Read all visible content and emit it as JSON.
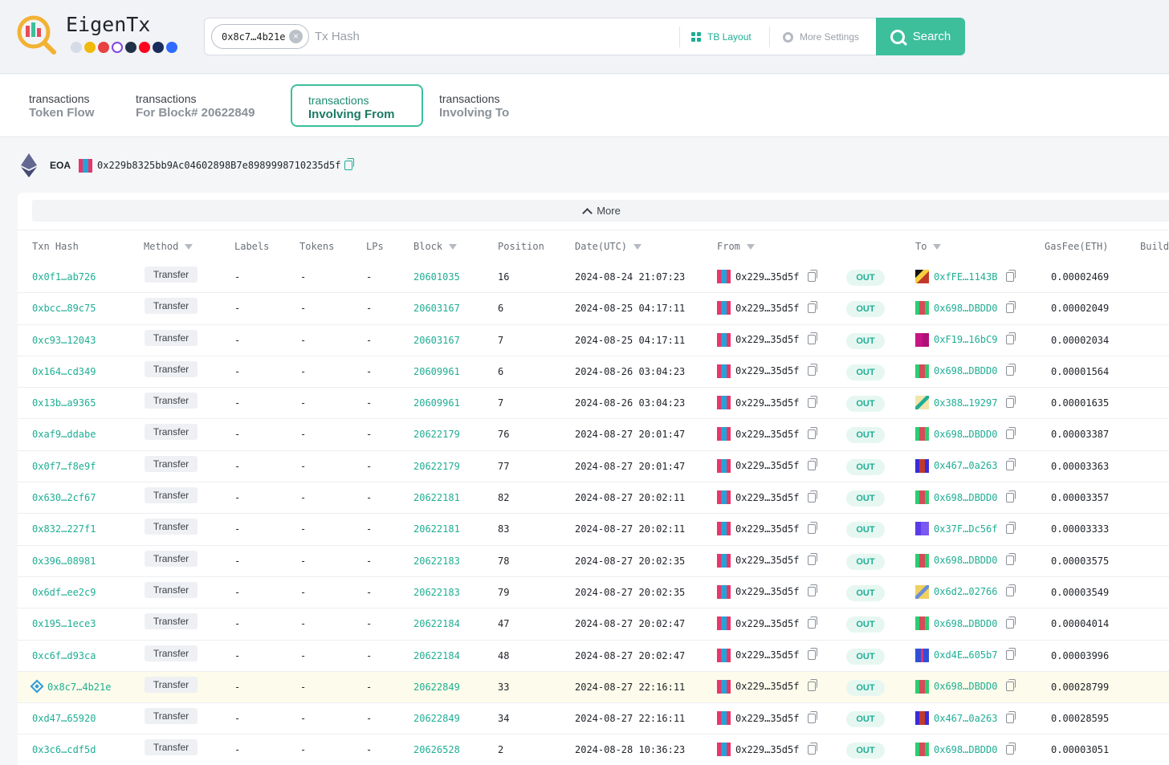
{
  "app": {
    "brand": "EigenTx",
    "chain_icons": [
      "ethereum-icon",
      "bnb-icon",
      "avalanche-icon",
      "polygon-icon",
      "arbitrum-icon",
      "optimism-icon",
      "fantom-icon",
      "base-icon"
    ]
  },
  "search": {
    "chip_label": "0x8c7…4b21e",
    "placeholder": "Tx Hash",
    "tb_layout_label": "TB Layout",
    "more_settings_label": "More Settings",
    "search_button_label": "Search"
  },
  "tabs": [
    {
      "line1": "transactions",
      "line2": "Token Flow",
      "active": false
    },
    {
      "line1": "transactions",
      "line2": "For Block# 20622849",
      "active": false
    },
    {
      "line1": "transactions",
      "line2": "Involving From",
      "active": true
    },
    {
      "line1": "transactions",
      "line2": "Involving To",
      "active": false
    }
  ],
  "eoa": {
    "label": "EOA",
    "address": "0x229b8325bb9Ac04602898B7e8989998710235d5f"
  },
  "table": {
    "more_label": "More",
    "columns": [
      "Txn Hash",
      "Method",
      "Labels",
      "Tokens",
      "LPs",
      "Block",
      "Position",
      "Date(UTC)",
      "From",
      "To",
      "GasFee(ETH)",
      "Build"
    ],
    "rows": [
      {
        "hash": "0x0f1…ab726",
        "method": "Transfer",
        "labels": "-",
        "tokens": "-",
        "lps": "-",
        "block": "20601035",
        "position": "16",
        "date": "2024-08-24 21:07:23",
        "from": "0x229…35d5f",
        "dir": "OUT",
        "to": "0xfFE…1143B",
        "gas": "0.00002469"
      },
      {
        "hash": "0xbcc…89c75",
        "method": "Transfer",
        "labels": "-",
        "tokens": "-",
        "lps": "-",
        "block": "20603167",
        "position": "6",
        "date": "2024-08-25 04:17:11",
        "from": "0x229…35d5f",
        "dir": "OUT",
        "to": "0x698…DBDD0",
        "gas": "0.00002049"
      },
      {
        "hash": "0xc93…12043",
        "method": "Transfer",
        "labels": "-",
        "tokens": "-",
        "lps": "-",
        "block": "20603167",
        "position": "7",
        "date": "2024-08-25 04:17:11",
        "from": "0x229…35d5f",
        "dir": "OUT",
        "to": "0xF19…16bC9",
        "gas": "0.00002034"
      },
      {
        "hash": "0x164…cd349",
        "method": "Transfer",
        "labels": "-",
        "tokens": "-",
        "lps": "-",
        "block": "20609961",
        "position": "6",
        "date": "2024-08-26 03:04:23",
        "from": "0x229…35d5f",
        "dir": "OUT",
        "to": "0x698…DBDD0",
        "gas": "0.00001564"
      },
      {
        "hash": "0x13b…a9365",
        "method": "Transfer",
        "labels": "-",
        "tokens": "-",
        "lps": "-",
        "block": "20609961",
        "position": "7",
        "date": "2024-08-26 03:04:23",
        "from": "0x229…35d5f",
        "dir": "OUT",
        "to": "0x388…19297",
        "gas": "0.00001635"
      },
      {
        "hash": "0xaf9…ddabe",
        "method": "Transfer",
        "labels": "-",
        "tokens": "-",
        "lps": "-",
        "block": "20622179",
        "position": "76",
        "date": "2024-08-27 20:01:47",
        "from": "0x229…35d5f",
        "dir": "OUT",
        "to": "0x698…DBDD0",
        "gas": "0.00003387"
      },
      {
        "hash": "0x0f7…f8e9f",
        "method": "Transfer",
        "labels": "-",
        "tokens": "-",
        "lps": "-",
        "block": "20622179",
        "position": "77",
        "date": "2024-08-27 20:01:47",
        "from": "0x229…35d5f",
        "dir": "OUT",
        "to": "0x467…0a263",
        "gas": "0.00003363"
      },
      {
        "hash": "0x630…2cf67",
        "method": "Transfer",
        "labels": "-",
        "tokens": "-",
        "lps": "-",
        "block": "20622181",
        "position": "82",
        "date": "2024-08-27 20:02:11",
        "from": "0x229…35d5f",
        "dir": "OUT",
        "to": "0x698…DBDD0",
        "gas": "0.00003357"
      },
      {
        "hash": "0x832…227f1",
        "method": "Transfer",
        "labels": "-",
        "tokens": "-",
        "lps": "-",
        "block": "20622181",
        "position": "83",
        "date": "2024-08-27 20:02:11",
        "from": "0x229…35d5f",
        "dir": "OUT",
        "to": "0x37F…Dc56f",
        "gas": "0.00003333"
      },
      {
        "hash": "0x396…08981",
        "method": "Transfer",
        "labels": "-",
        "tokens": "-",
        "lps": "-",
        "block": "20622183",
        "position": "78",
        "date": "2024-08-27 20:02:35",
        "from": "0x229…35d5f",
        "dir": "OUT",
        "to": "0x698…DBDD0",
        "gas": "0.00003575"
      },
      {
        "hash": "0x6df…ee2c9",
        "method": "Transfer",
        "labels": "-",
        "tokens": "-",
        "lps": "-",
        "block": "20622183",
        "position": "79",
        "date": "2024-08-27 20:02:35",
        "from": "0x229…35d5f",
        "dir": "OUT",
        "to": "0x6d2…02766",
        "gas": "0.00003549"
      },
      {
        "hash": "0x195…1ece3",
        "method": "Transfer",
        "labels": "-",
        "tokens": "-",
        "lps": "-",
        "block": "20622184",
        "position": "47",
        "date": "2024-08-27 20:02:47",
        "from": "0x229…35d5f",
        "dir": "OUT",
        "to": "0x698…DBDD0",
        "gas": "0.00004014"
      },
      {
        "hash": "0xc6f…d93ca",
        "method": "Transfer",
        "labels": "-",
        "tokens": "-",
        "lps": "-",
        "block": "20622184",
        "position": "48",
        "date": "2024-08-27 20:02:47",
        "from": "0x229…35d5f",
        "dir": "OUT",
        "to": "0xd4E…605b7",
        "gas": "0.00003996"
      },
      {
        "hash": "0x8c7…4b21e",
        "method": "Transfer",
        "labels": "-",
        "tokens": "-",
        "lps": "-",
        "block": "20622849",
        "position": "33",
        "date": "2024-08-27 22:16:11",
        "from": "0x229…35d5f",
        "dir": "OUT",
        "to": "0x698…DBDD0",
        "gas": "0.00028799",
        "highlight": true
      },
      {
        "hash": "0xd47…65920",
        "method": "Transfer",
        "labels": "-",
        "tokens": "-",
        "lps": "-",
        "block": "20622849",
        "position": "34",
        "date": "2024-08-27 22:16:11",
        "from": "0x229…35d5f",
        "dir": "OUT",
        "to": "0x467…0a263",
        "gas": "0.00028595"
      },
      {
        "hash": "0x3c6…cdf5d",
        "method": "Transfer",
        "labels": "-",
        "tokens": "-",
        "lps": "-",
        "block": "20626528",
        "position": "2",
        "date": "2024-08-28 10:36:23",
        "from": "0x229…35d5f",
        "dir": "OUT",
        "to": "0x698…DBDD0",
        "gas": "0.00003051"
      }
    ]
  },
  "colors": {
    "accent": "#3dbf9c",
    "link": "#1fae94",
    "highlight_row": "#fdfbeb",
    "out_badge_bg": "#e6f7f1"
  }
}
